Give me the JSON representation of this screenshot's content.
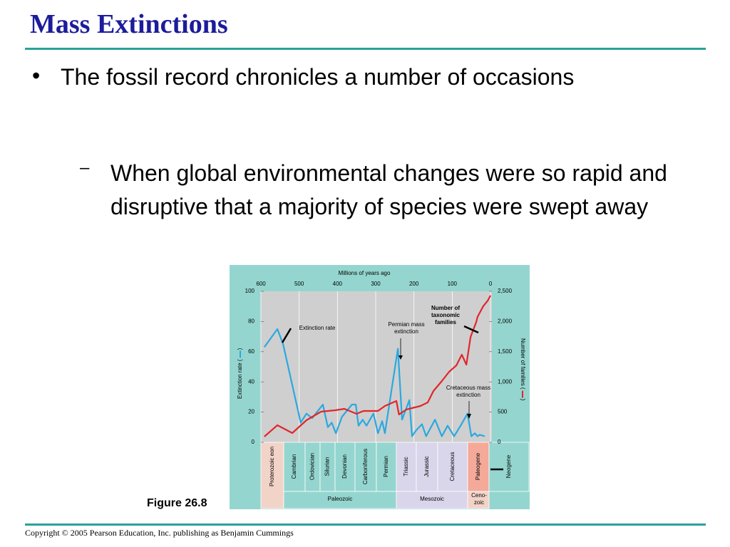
{
  "title": "Mass Extinctions",
  "bullet_marker": "•",
  "bullet": "The fossil record chronicles a number of occasions",
  "sub_bullet_marker": "–",
  "sub_bullet": "When global environmental changes were so rapid and disruptive that a majority of species were swept away",
  "figure_caption": "Figure 26.8",
  "footer": "Copyright © 2005 Pearson Education, Inc. publishing as Benjamin Cummings",
  "chart_data": {
    "type": "line",
    "xlabel": "Millions of years ago",
    "ylabel": "Extinction rate (",
    "y2label": "Number of families (",
    "label_close": ")",
    "xlim": [
      600,
      0
    ],
    "xticks": [
      600,
      500,
      400,
      300,
      200,
      100,
      0
    ],
    "ylim": [
      0,
      100
    ],
    "yticks": [
      0,
      20,
      40,
      60,
      80,
      100
    ],
    "y2lim": [
      0,
      2500
    ],
    "y2ticks": [
      0,
      500,
      {
        "value": 1000,
        "label": "1,000"
      },
      {
        "value": 1500,
        "label": "1,500"
      },
      {
        "value": 2000,
        "label": "2,000"
      },
      {
        "value": 2500,
        "label": "2,500"
      }
    ],
    "grid": true,
    "series": [
      {
        "name": "Extinction rate",
        "color": "#29a9e0",
        "x": [
          591,
          557,
          542,
          496,
          481,
          466,
          438,
          425,
          415,
          404,
          388,
          362,
          352,
          345,
          334,
          324,
          306,
          294,
          283,
          276,
          242,
          231,
          212,
          205,
          194,
          179,
          168,
          145,
          127,
          112,
          95,
          78,
          60,
          50,
          41,
          34,
          28,
          15
        ],
        "values": [
          63,
          75,
          65,
          13,
          19,
          16,
          25,
          10,
          13,
          6,
          17,
          25,
          25,
          11,
          15,
          11,
          19,
          6,
          14,
          6,
          62,
          15,
          28,
          4,
          8,
          12,
          4,
          15,
          4,
          11,
          4,
          11,
          19,
          4,
          6,
          4,
          5,
          4
        ]
      },
      {
        "name": "Number of taxonomic families",
        "color": "#e0262b",
        "axis": "y2",
        "x": [
          591,
          557,
          518,
          481,
          443,
          406,
          382,
          350,
          332,
          294,
          276,
          246,
          239,
          220,
          183,
          164,
          149,
          127,
          108,
          89,
          75,
          63,
          52,
          37,
          34,
          19,
          7,
          0
        ],
        "values": [
          94,
          283,
          153,
          366,
          507,
          531,
          554,
          472,
          519,
          519,
          601,
          684,
          460,
          542,
          601,
          660,
          849,
          1014,
          1167,
          1273,
          1450,
          1285,
          1745,
          1993,
          2075,
          2252,
          2346,
          2430
        ]
      }
    ],
    "annotations": [
      "Permian mass extinction",
      "Cretaceous mass extinction"
    ],
    "periods": [
      "Proterozoic eon",
      "Cambrian",
      "Ordovician",
      "Silurian",
      "Devonian",
      "Carboniferous",
      "Permian",
      "Triassic",
      "Jurassic",
      "Cretaceous",
      "Paleogene",
      "Neogene"
    ],
    "eras": [
      "Paleozoic",
      "Mesozoic",
      "Ceno-zoic"
    ]
  }
}
